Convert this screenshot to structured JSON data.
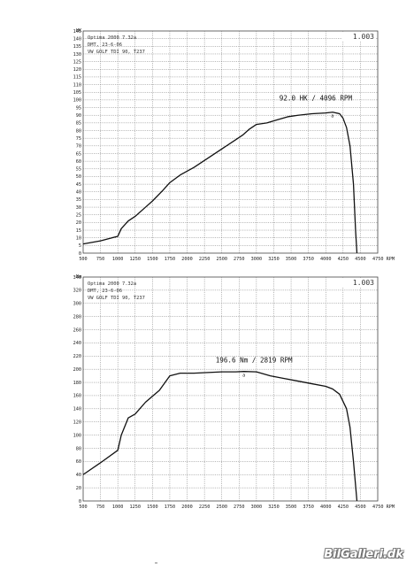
{
  "chart_data": [
    {
      "type": "line",
      "unit_label": "HK",
      "info_lines": [
        "Optima 2000 7.32a",
        "DMT, 23-6-06",
        "VW GOLF TDI 90, T237"
      ],
      "version": "1.003",
      "xticks": [
        "500",
        "750",
        "1000",
        "1250",
        "1500",
        "1750",
        "2000",
        "2250",
        "2500",
        "2750",
        "3000",
        "3250",
        "3500",
        "3750",
        "4000",
        "4250",
        "4500",
        "4750 RPM"
      ],
      "xlim": [
        500,
        4750
      ],
      "ylim": [
        0,
        145
      ],
      "ytick_step": 5,
      "grid": true,
      "peak_label": "92.0 HK / 4096 RPM",
      "peak_point": [
        4096,
        92.0
      ],
      "series": [
        {
          "x": [
            500,
            750,
            1000,
            1050,
            1150,
            1250,
            1400,
            1500,
            1650,
            1750,
            1900,
            2100,
            2300,
            2500,
            2700,
            2800,
            2900,
            3000,
            3150,
            3300,
            3450,
            3600,
            3800,
            4000,
            4100,
            4200,
            4250,
            4300,
            4350,
            4400,
            4430,
            4450
          ],
          "y": [
            6,
            8,
            11,
            16,
            21,
            24,
            30,
            34,
            41,
            46,
            51,
            56,
            62,
            68,
            74,
            77,
            81,
            84,
            85,
            87,
            89,
            90,
            91,
            91.5,
            92,
            91,
            88,
            82,
            70,
            45,
            15,
            0
          ]
        }
      ]
    },
    {
      "type": "line",
      "unit_label": "Nm",
      "info_lines": [
        "Optima 2000 7.32a",
        "DMT, 23-6-06",
        "VW GOLF TDI 90, T237"
      ],
      "version": "1.003",
      "xticks": [
        "500",
        "750",
        "1000",
        "1250",
        "1500",
        "1750",
        "2000",
        "2250",
        "2500",
        "2750",
        "3000",
        "3250",
        "3500",
        "3750",
        "4000",
        "4250",
        "4500",
        "4750 RPM"
      ],
      "xlim": [
        500,
        4750
      ],
      "ylim": [
        0,
        340
      ],
      "ytick_step": 20,
      "grid": true,
      "peak_label": "196.6 Nm / 2819 RPM",
      "peak_point": [
        2819,
        196.6
      ],
      "series": [
        {
          "x": [
            500,
            750,
            1000,
            1050,
            1150,
            1250,
            1400,
            1600,
            1750,
            1900,
            2100,
            2300,
            2500,
            2700,
            2819,
            3000,
            3200,
            3400,
            3600,
            3800,
            4000,
            4100,
            4200,
            4300,
            4350,
            4400,
            4450
          ],
          "y": [
            40,
            58,
            77,
            100,
            126,
            132,
            150,
            168,
            190,
            194,
            194,
            195,
            196,
            196,
            196.6,
            196,
            190,
            186,
            182,
            178,
            174,
            170,
            162,
            140,
            112,
            60,
            0
          ]
        }
      ]
    }
  ],
  "watermark": "BilGalleri.dk"
}
